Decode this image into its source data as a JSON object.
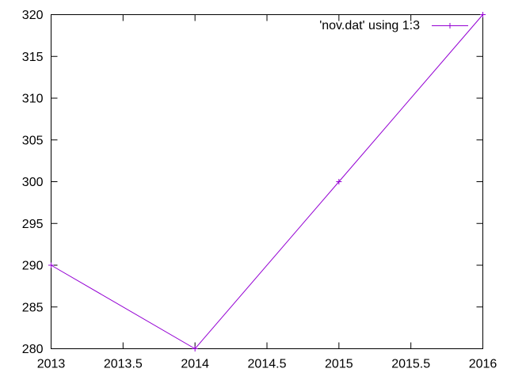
{
  "chart_data": {
    "type": "line",
    "title": "",
    "xlabel": "",
    "ylabel": "",
    "xlim": [
      2013,
      2016
    ],
    "ylim": [
      280,
      320
    ],
    "xticks": [
      2013,
      2013.5,
      2014,
      2014.5,
      2015,
      2015.5,
      2016
    ],
    "xtick_labels": [
      "2013",
      "2013.5",
      "2014",
      "2014.5",
      "2015",
      "2015.5",
      "2016"
    ],
    "yticks": [
      280,
      285,
      290,
      295,
      300,
      305,
      310,
      315,
      320
    ],
    "ytick_labels": [
      "280",
      "285",
      "290",
      "295",
      "300",
      "305",
      "310",
      "315",
      "320"
    ],
    "grid": false,
    "legend_position": "top-right",
    "series": [
      {
        "name": "'nov.dat' using 1:3",
        "color": "#9400d3",
        "marker": "plus",
        "x": [
          2013,
          2014,
          2015,
          2016
        ],
        "y": [
          290,
          280,
          300,
          320
        ]
      }
    ]
  }
}
